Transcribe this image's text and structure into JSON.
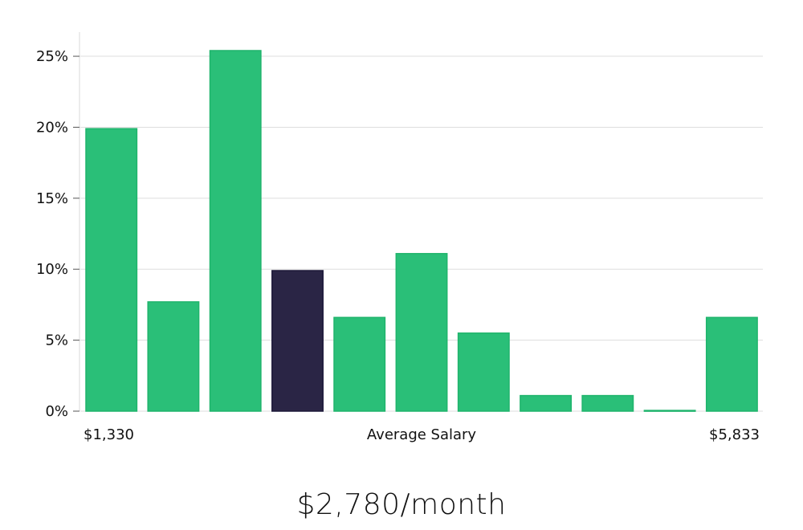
{
  "chart_data": {
    "type": "bar",
    "values": [
      19.9,
      7.7,
      25.4,
      9.9,
      6.6,
      11.1,
      5.5,
      1.1,
      1.1,
      0.05,
      6.6
    ],
    "highlight_index": 3,
    "ylim": [
      0,
      26.7
    ],
    "yticks": [
      0,
      5,
      10,
      15,
      20,
      25
    ],
    "ytick_labels": [
      "0%",
      "5%",
      "10%",
      "15%",
      "20%",
      "25%"
    ],
    "xlabel": "Average Salary",
    "x_min_label": "$1,330",
    "x_max_label": "$5,833",
    "bar_color": "#2abf78",
    "highlight_color": "#2a2545",
    "grid": true
  },
  "summary": {
    "salary": "$2,780/month"
  }
}
